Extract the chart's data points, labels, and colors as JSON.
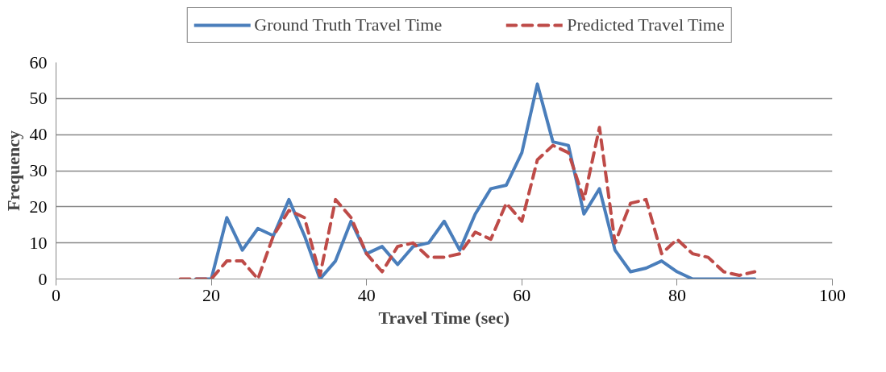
{
  "chart_data": {
    "type": "line",
    "xlabel": "Travel Time (sec)",
    "ylabel": "Frequency",
    "x": [
      16,
      18,
      20,
      22,
      24,
      26,
      28,
      30,
      32,
      34,
      36,
      38,
      40,
      42,
      44,
      46,
      48,
      50,
      52,
      54,
      56,
      58,
      60,
      62,
      64,
      66,
      68,
      70,
      72,
      74,
      76,
      78,
      80,
      82,
      84,
      86,
      88,
      90
    ],
    "series": [
      {
        "name": "Ground Truth Travel Time",
        "color": "#4a7ebb",
        "line_style": "solid",
        "values": [
          null,
          0,
          0,
          17,
          8,
          14,
          12,
          22,
          12,
          0,
          5,
          16,
          7,
          9,
          4,
          9,
          10,
          16,
          8,
          18,
          25,
          26,
          35,
          54,
          38,
          37,
          18,
          25,
          8,
          2,
          3,
          5,
          2,
          0,
          0,
          0,
          0,
          0
        ]
      },
      {
        "name": "Predicted Travel Time",
        "color": "#be4b48",
        "line_style": "dashed",
        "values": [
          0,
          0,
          0,
          5,
          5,
          0,
          12,
          19,
          17,
          1,
          22,
          17,
          7,
          2,
          9,
          10,
          6,
          6,
          7,
          13,
          11,
          21,
          16,
          33,
          37,
          35,
          22,
          42,
          10,
          21,
          22,
          7,
          11,
          7,
          6,
          2,
          1,
          2
        ]
      }
    ],
    "xlim": [
      0,
      100
    ],
    "xticks": [
      0,
      20,
      40,
      60,
      80,
      100
    ],
    "ylim": [
      0,
      60
    ],
    "yticks": [
      0,
      10,
      20,
      30,
      40,
      50,
      60
    ],
    "grid": "y",
    "legend": "top",
    "marker": "none"
  }
}
